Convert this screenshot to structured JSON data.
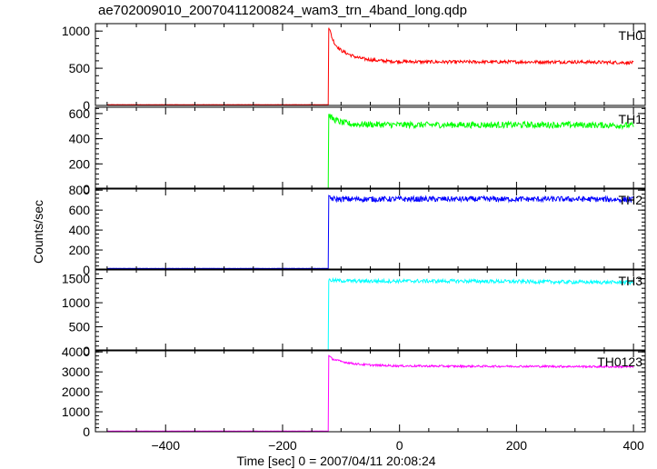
{
  "chart_data": {
    "title": "ae702009010_20070411200824_wam3_trn_4band_long.qdp",
    "type": "line",
    "xlabel": "Time [sec] 0 = 2007/04/11 20:08:24",
    "ylabel": "Counts/sec",
    "xlim": [
      -520,
      420
    ],
    "x_ticks": [
      -400,
      -200,
      0,
      200,
      400
    ],
    "x_tick_labels": [
      "−400",
      "−200",
      "0",
      "200",
      "400"
    ],
    "onset_time": -122,
    "panels": [
      {
        "name": "TH0",
        "color": "#ff0000",
        "ylim": [
          0,
          1100
        ],
        "y_ticks": [
          0,
          500,
          1000
        ],
        "y_tick_labels": [
          "0",
          "500",
          "1000"
        ],
        "baseline": 10,
        "series": {
          "x": [
            -500,
            -122,
            -121,
            -115,
            -110,
            -100,
            -90,
            -80,
            -70,
            -60,
            -50,
            -40,
            -20,
            0,
            50,
            100,
            150,
            200,
            250,
            300,
            350,
            400
          ],
          "y": [
            10,
            10,
            1060,
            900,
            820,
            740,
            700,
            665,
            640,
            625,
            615,
            605,
            595,
            590,
            585,
            585,
            585,
            585,
            585,
            585,
            580,
            575
          ]
        },
        "noise": 22
      },
      {
        "name": "TH1",
        "color": "#00ff00",
        "ylim": [
          0,
          650
        ],
        "y_ticks": [
          0,
          200,
          400,
          600
        ],
        "y_tick_labels": [
          "0",
          "200",
          "400",
          "600"
        ],
        "baseline": 5,
        "series": {
          "x": [
            -500,
            -122,
            -121,
            -115,
            -100,
            -80,
            0,
            100,
            200,
            300,
            400
          ],
          "y": [
            5,
            5,
            590,
            560,
            530,
            515,
            510,
            510,
            510,
            510,
            505
          ]
        },
        "noise": 25
      },
      {
        "name": "TH2",
        "color": "#0000ff",
        "ylim": [
          0,
          820
        ],
        "y_ticks": [
          0,
          200,
          400,
          600,
          800
        ],
        "y_tick_labels": [
          "0",
          "200",
          "400",
          "600",
          "800"
        ],
        "baseline": 15,
        "series": {
          "x": [
            -500,
            -122,
            -121,
            -110,
            -80,
            0,
            100,
            200,
            300,
            400
          ],
          "y": [
            15,
            15,
            720,
            710,
            710,
            710,
            710,
            710,
            710,
            705
          ]
        },
        "noise": 28
      },
      {
        "name": "TH3",
        "color": "#00ffff",
        "ylim": [
          0,
          1700
        ],
        "y_ticks": [
          0,
          500,
          1000,
          1500
        ],
        "y_tick_labels": [
          "0",
          "500",
          "1000",
          "1500"
        ],
        "baseline": 10,
        "series": {
          "x": [
            -500,
            -122,
            -121,
            -110,
            -80,
            0,
            100,
            200,
            300,
            400
          ],
          "y": [
            10,
            10,
            1470,
            1460,
            1450,
            1450,
            1450,
            1440,
            1430,
            1420
          ]
        },
        "noise": 38
      },
      {
        "name": "TH0123",
        "color": "#ff00ff",
        "ylim": [
          0,
          4100
        ],
        "y_ticks": [
          0,
          1000,
          2000,
          3000,
          4000
        ],
        "y_tick_labels": [
          "0",
          "1000",
          "2000",
          "3000",
          "4000"
        ],
        "baseline": 30,
        "series": {
          "x": [
            -500,
            -122,
            -121,
            -115,
            -100,
            -80,
            -60,
            -40,
            0,
            100,
            200,
            300,
            400
          ],
          "y": [
            30,
            30,
            3800,
            3650,
            3520,
            3420,
            3360,
            3330,
            3300,
            3280,
            3280,
            3270,
            3250
          ]
        },
        "noise": 50
      }
    ]
  }
}
